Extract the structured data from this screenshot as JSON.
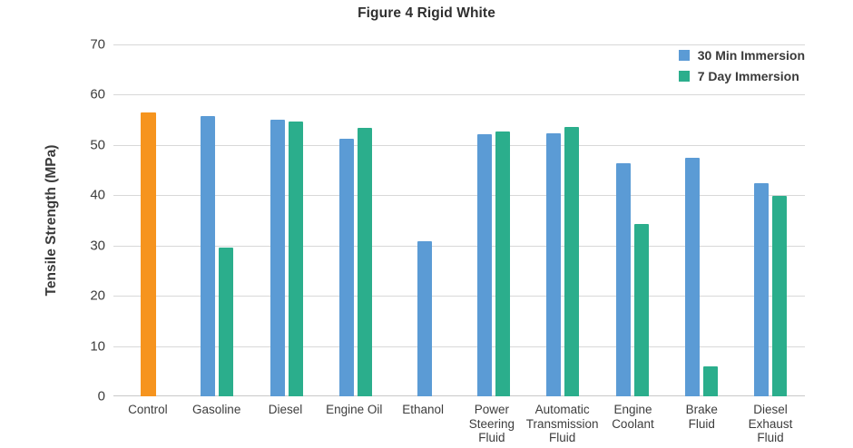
{
  "page": {
    "title": "Figure 4 Rigid White"
  },
  "colors": {
    "control_bar": "#F6941E",
    "series_30min": "#5B9BD5",
    "series_7day": "#2BAE8C",
    "gridline": "#D8D8D8",
    "axis_baseline": "#C9C9C9",
    "text": "#3A3A3A"
  },
  "chart_data": {
    "type": "bar",
    "title": "Figure 4 Rigid White",
    "xlabel": "",
    "ylabel": "Tensile Strength (MPa)",
    "ylim": [
      0,
      70
    ],
    "yticks": [
      0,
      10,
      20,
      30,
      40,
      50,
      60,
      70
    ],
    "grid": true,
    "legend_position": "top-right",
    "categories": [
      "Control",
      "Gasoline",
      "Diesel",
      "Engine Oil",
      "Ethanol",
      "Power Steering Fluid",
      "Automatic Transmission Fluid",
      "Engine Coolant",
      "Brake Fluid",
      "Diesel Exhaust Fluid"
    ],
    "category_label_lines": [
      [
        "Control"
      ],
      [
        "Gasoline"
      ],
      [
        "Diesel"
      ],
      [
        "Engine Oil"
      ],
      [
        "Ethanol"
      ],
      [
        "Power",
        "Steering",
        "Fluid"
      ],
      [
        "Automatic",
        "Transmission",
        "Fluid"
      ],
      [
        "Engine",
        "Coolant"
      ],
      [
        "Brake",
        "Fluid"
      ],
      [
        "Diesel",
        "Exhaust",
        "Fluid"
      ]
    ],
    "control_series": {
      "name": "Control",
      "category": "Control",
      "value": 56.5,
      "color": "#F6941E"
    },
    "series": [
      {
        "name": "30 Min Immersion",
        "color": "#5B9BD5",
        "values": [
          null,
          55.8,
          55.1,
          51.3,
          30.9,
          52.1,
          52.3,
          46.3,
          47.4,
          42.4
        ]
      },
      {
        "name": "7 Day Immersion",
        "color": "#2BAE8C",
        "values": [
          null,
          29.6,
          54.7,
          53.4,
          null,
          52.7,
          53.6,
          34.3,
          6.0,
          39.8
        ]
      }
    ]
  }
}
